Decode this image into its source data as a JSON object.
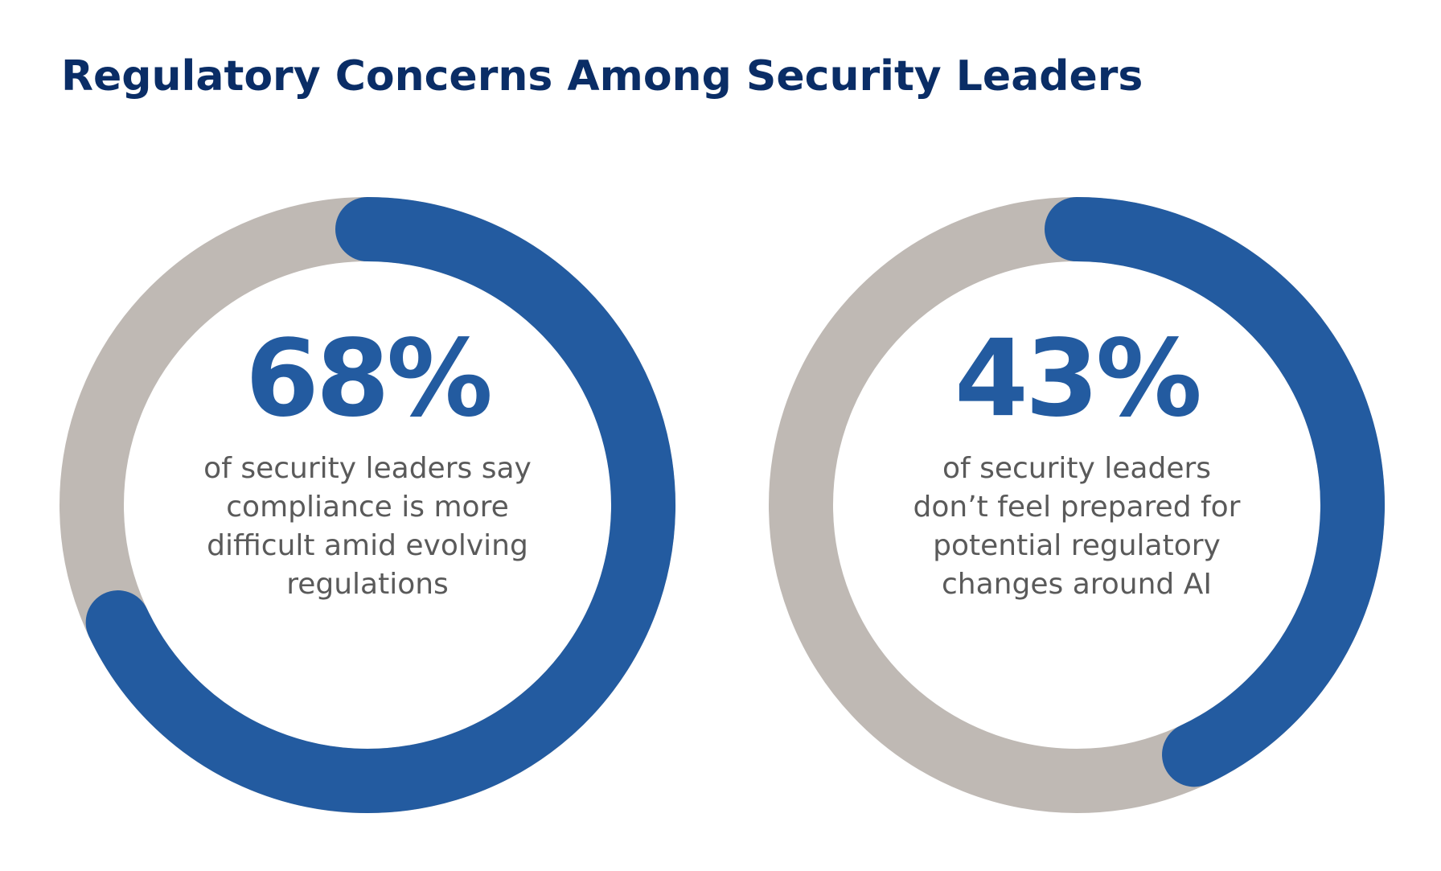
{
  "title": "Regulatory Concerns Among Security Leaders",
  "chart_data": [
    {
      "type": "donut",
      "values": [
        68
      ],
      "value_labels": [
        "68%"
      ],
      "color": "#235ba0",
      "track_color": "#bfb9b4",
      "description": [
        "of security leaders say",
        "compliance is more",
        "difficult amid evolving",
        "regulations"
      ]
    },
    {
      "type": "donut",
      "values": [
        43
      ],
      "value_labels": [
        "43%"
      ],
      "color": "#235ba0",
      "track_color": "#bfb9b4",
      "description": [
        "of security leaders",
        "don’t feel prepared for",
        "potential regulatory",
        "changes around AI"
      ]
    }
  ]
}
